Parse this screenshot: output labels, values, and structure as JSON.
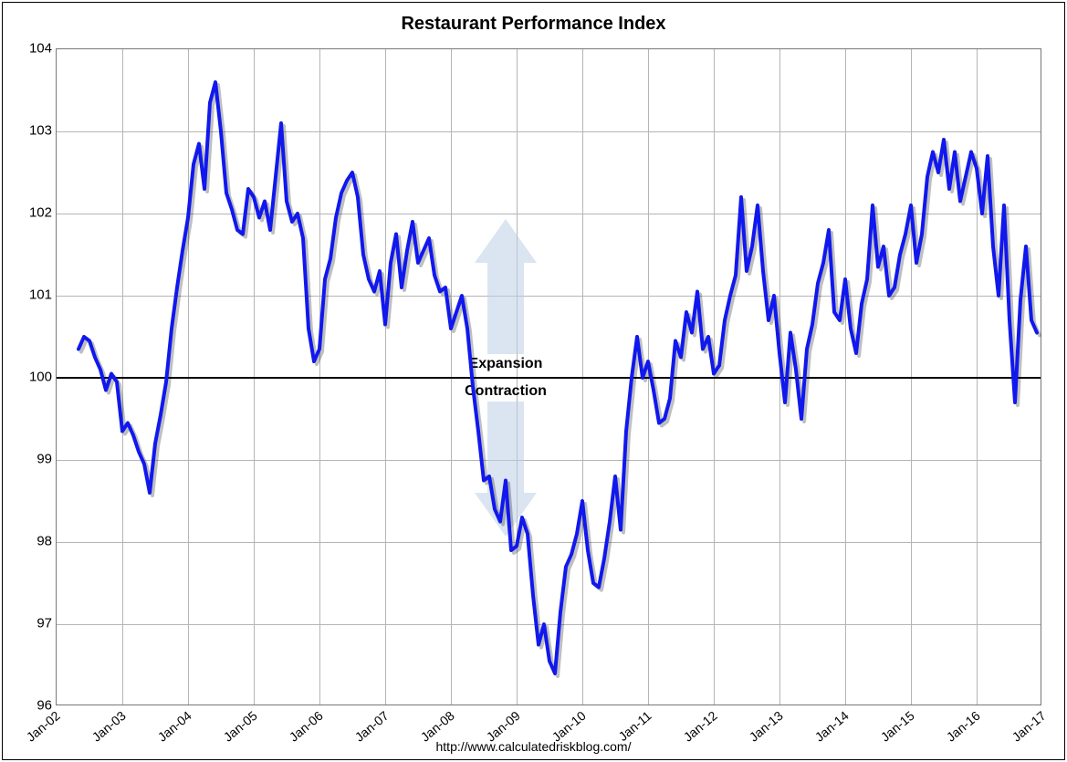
{
  "title": "Restaurant Performance Index",
  "source_url": "http://www.calculatedriskblog.com/",
  "chart": {
    "type": "line",
    "background_color": "#ffffff",
    "grid_color": "#b5b5b5",
    "frame_color": "#000000",
    "plot_border_color": "#777777",
    "line_color": "#1018ee",
    "line_width": 4,
    "shadow_color": "rgba(0,0,0,0.25)",
    "shadow_dx": 3,
    "shadow_dy": 3,
    "zero_line_color": "#000000",
    "zero_line_width": 2,
    "ylim": [
      96,
      104
    ],
    "ytick_step": 1,
    "y_tick_labels": [
      "96",
      "97",
      "98",
      "99",
      "100",
      "101",
      "102",
      "103",
      "104"
    ],
    "y_label_fontsize": 15,
    "xlim_months": [
      0,
      180
    ],
    "x_tick_step_months": 12,
    "x_tick_labels": [
      "Jan-02",
      "Jan-03",
      "Jan-04",
      "Jan-05",
      "Jan-06",
      "Jan-07",
      "Jan-08",
      "Jan-09",
      "Jan-10",
      "Jan-11",
      "Jan-12",
      "Jan-13",
      "Jan-14",
      "Jan-15",
      "Jan-16",
      "Jan-17"
    ],
    "x_label_fontsize": 14,
    "x_label_rotation_deg": -40,
    "title_fontsize": 20,
    "title_fontweight": "bold",
    "annotation_up_label": "Expansion",
    "annotation_down_label": "Contraction",
    "annotation_fontsize": 16,
    "annotation_fontweight": "bold",
    "arrow_color": "#bdd0e6",
    "arrow_center_month": 82,
    "reference_value": 100,
    "series": {
      "start_month": 4,
      "values": [
        100.35,
        100.5,
        100.45,
        100.25,
        100.1,
        99.85,
        100.05,
        99.95,
        99.35,
        99.45,
        99.3,
        99.1,
        98.95,
        98.6,
        99.2,
        99.55,
        99.95,
        100.6,
        101.1,
        101.55,
        101.95,
        102.6,
        102.85,
        102.3,
        103.35,
        103.6,
        103.0,
        102.25,
        102.05,
        101.8,
        101.75,
        102.3,
        102.2,
        101.95,
        102.15,
        101.8,
        102.45,
        103.1,
        102.15,
        101.9,
        102.0,
        101.7,
        100.6,
        100.2,
        100.35,
        101.2,
        101.45,
        101.95,
        102.25,
        102.4,
        102.5,
        102.2,
        101.5,
        101.2,
        101.05,
        101.3,
        100.65,
        101.4,
        101.75,
        101.1,
        101.55,
        101.9,
        101.4,
        101.55,
        101.7,
        101.25,
        101.05,
        101.1,
        100.6,
        100.8,
        101.0,
        100.6,
        99.9,
        99.35,
        98.75,
        98.8,
        98.4,
        98.25,
        98.75,
        97.9,
        97.95,
        98.3,
        98.1,
        97.35,
        96.75,
        97.0,
        96.55,
        96.4,
        97.15,
        97.7,
        97.85,
        98.1,
        98.5,
        97.9,
        97.5,
        97.45,
        97.8,
        98.25,
        98.8,
        98.15,
        99.35,
        100.0,
        100.5,
        100.0,
        100.2,
        99.85,
        99.45,
        99.5,
        99.75,
        100.45,
        100.25,
        100.8,
        100.55,
        101.05,
        100.35,
        100.5,
        100.05,
        100.15,
        100.7,
        101.0,
        101.25,
        102.2,
        101.3,
        101.6,
        102.1,
        101.3,
        100.7,
        101.0,
        100.3,
        99.7,
        100.55,
        100.1,
        99.5,
        100.35,
        100.65,
        101.15,
        101.4,
        101.8,
        100.8,
        100.7,
        101.2,
        100.6,
        100.3,
        100.9,
        101.2,
        102.1,
        101.35,
        101.6,
        101.0,
        101.1,
        101.5,
        101.75,
        102.1,
        101.4,
        101.75,
        102.45,
        102.75,
        102.5,
        102.9,
        102.3,
        102.75,
        102.15,
        102.45,
        102.75,
        102.55,
        102.0,
        102.7,
        101.6,
        101.0,
        102.1,
        100.7,
        99.7,
        100.95,
        101.6,
        100.7,
        100.55
      ]
    }
  }
}
